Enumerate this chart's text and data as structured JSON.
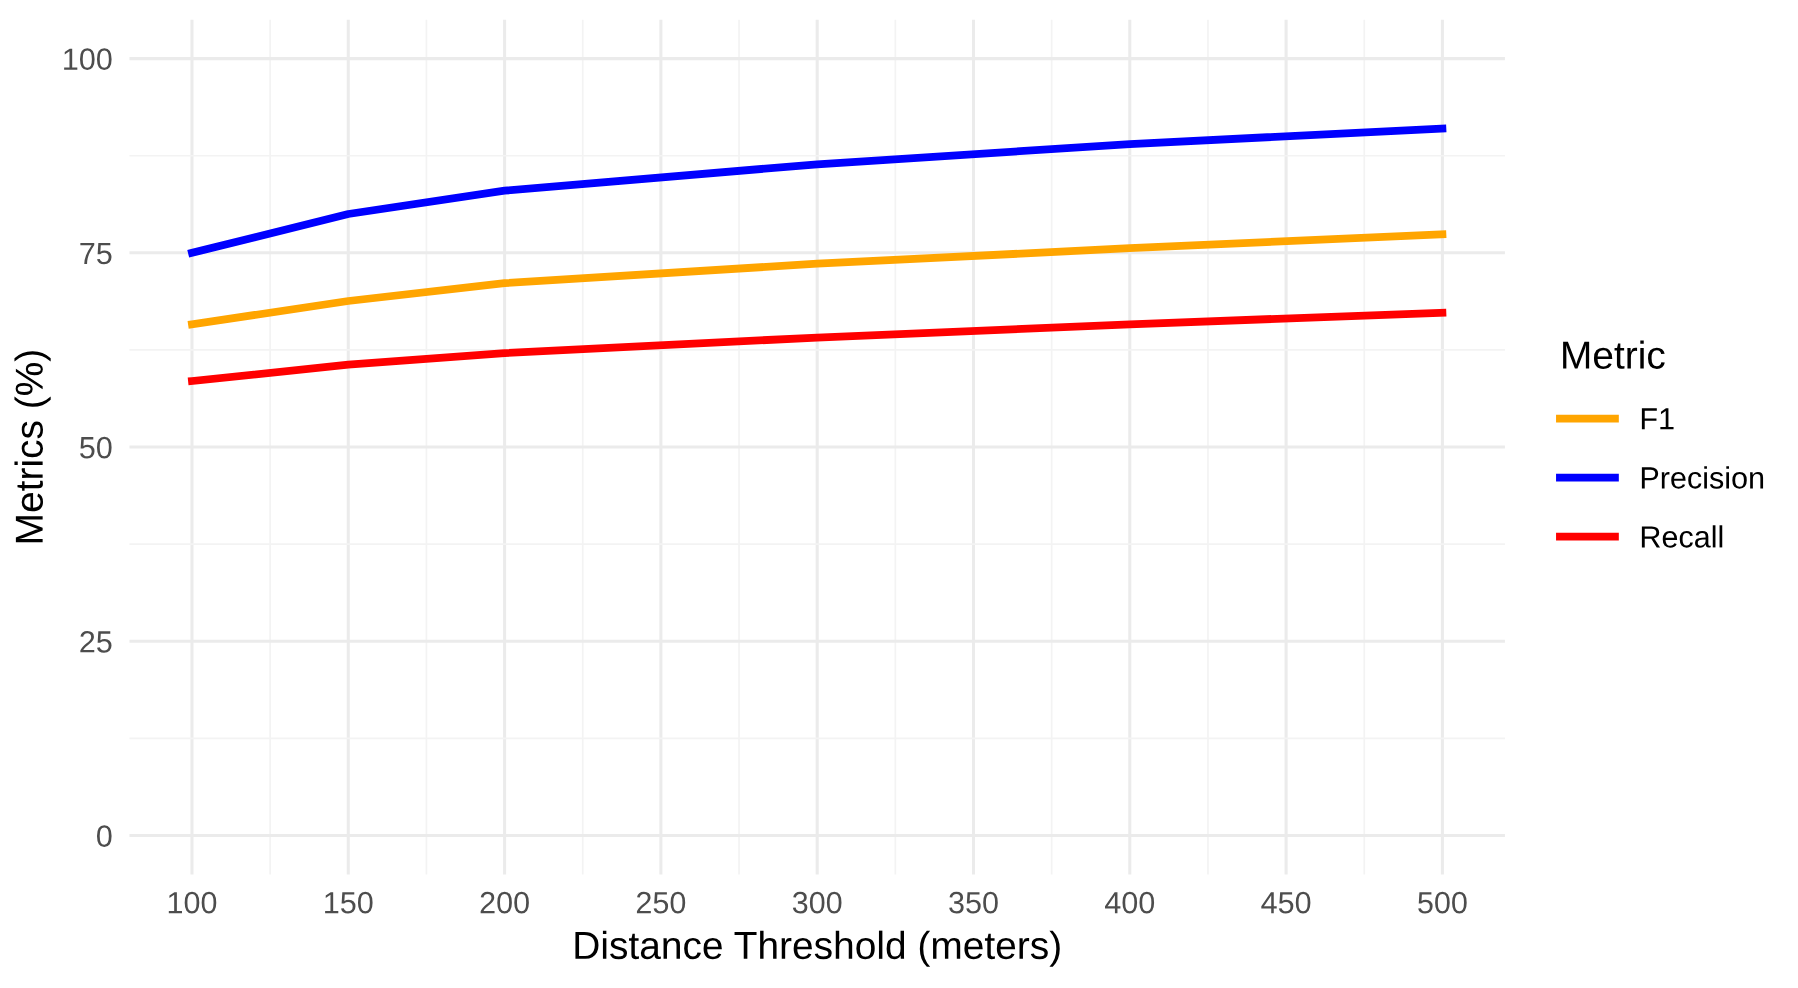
{
  "chart_data": {
    "type": "line",
    "xlabel": "Distance Threshold (meters)",
    "ylabel": "Metrics (%)",
    "legend_title": "Metric",
    "legend": "right",
    "grid": true,
    "line_style": "solid",
    "marker": "none",
    "x": [
      100,
      150,
      200,
      300,
      400,
      500
    ],
    "xlim": [
      80,
      520
    ],
    "xticks": [
      100,
      150,
      200,
      250,
      300,
      350,
      400,
      450,
      500
    ],
    "ylim": [
      -5,
      105
    ],
    "yticks": [
      0,
      25,
      50,
      75,
      100
    ],
    "series": [
      {
        "name": "F1",
        "color": "#ffa500",
        "values": [
          65.8,
          68.8,
          71.1,
          73.6,
          75.6,
          77.4
        ]
      },
      {
        "name": "Precision",
        "color": "#0000ff",
        "values": [
          75,
          80,
          83,
          86.4,
          89,
          91
        ]
      },
      {
        "name": "Recall",
        "color": "#ff0000",
        "values": [
          58.5,
          60.6,
          62.1,
          64.1,
          65.8,
          67.3
        ]
      }
    ]
  }
}
